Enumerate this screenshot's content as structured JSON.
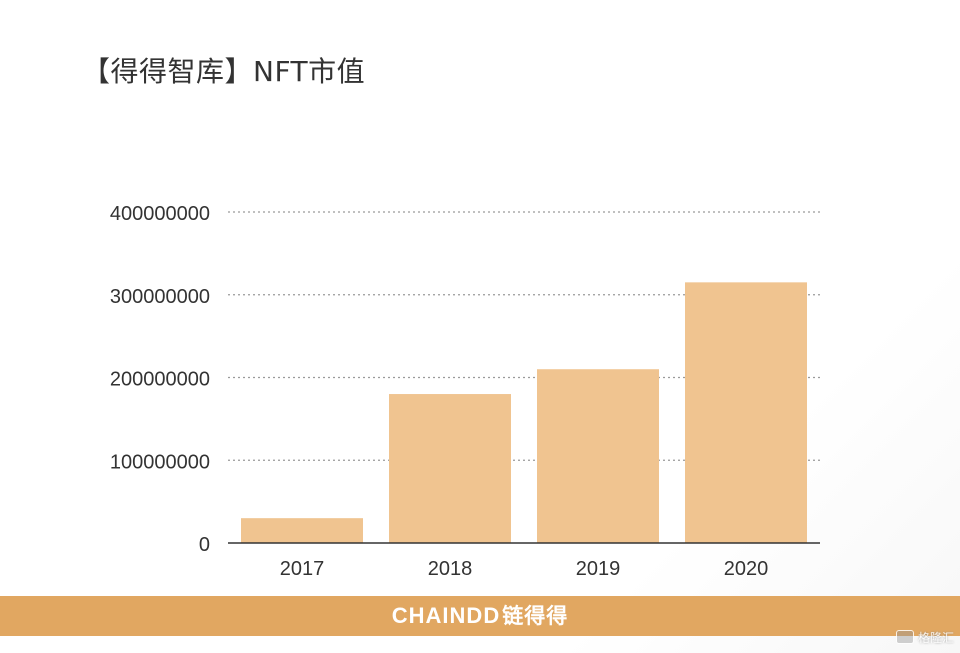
{
  "title": "【得得智库】NFT市值",
  "colors": {
    "bar": "#f0c490",
    "grid": "#9a9a9a",
    "axis": "#333333",
    "brand_bar": "#e1a761",
    "text": "#333333"
  },
  "chart_data": {
    "type": "bar",
    "title": "【得得智库】NFT市值",
    "xlabel": "",
    "ylabel": "",
    "categories": [
      "2017",
      "2018",
      "2019",
      "2020"
    ],
    "values": [
      30000000,
      180000000,
      210000000,
      315000000
    ],
    "yticks": [
      0,
      100000000,
      200000000,
      300000000,
      400000000
    ],
    "ytick_labels": [
      "0",
      "100000000",
      "200000000",
      "300000000",
      "400000000"
    ],
    "ylim": [
      0,
      400000000
    ],
    "grid": true,
    "grid_style": "dotted",
    "legend": "none"
  },
  "footer": {
    "brand_latin": "CHAINDD",
    "brand_cn": "链得得"
  },
  "watermark": {
    "icon": "watermark-logo-icon",
    "text": "格隆汇"
  }
}
